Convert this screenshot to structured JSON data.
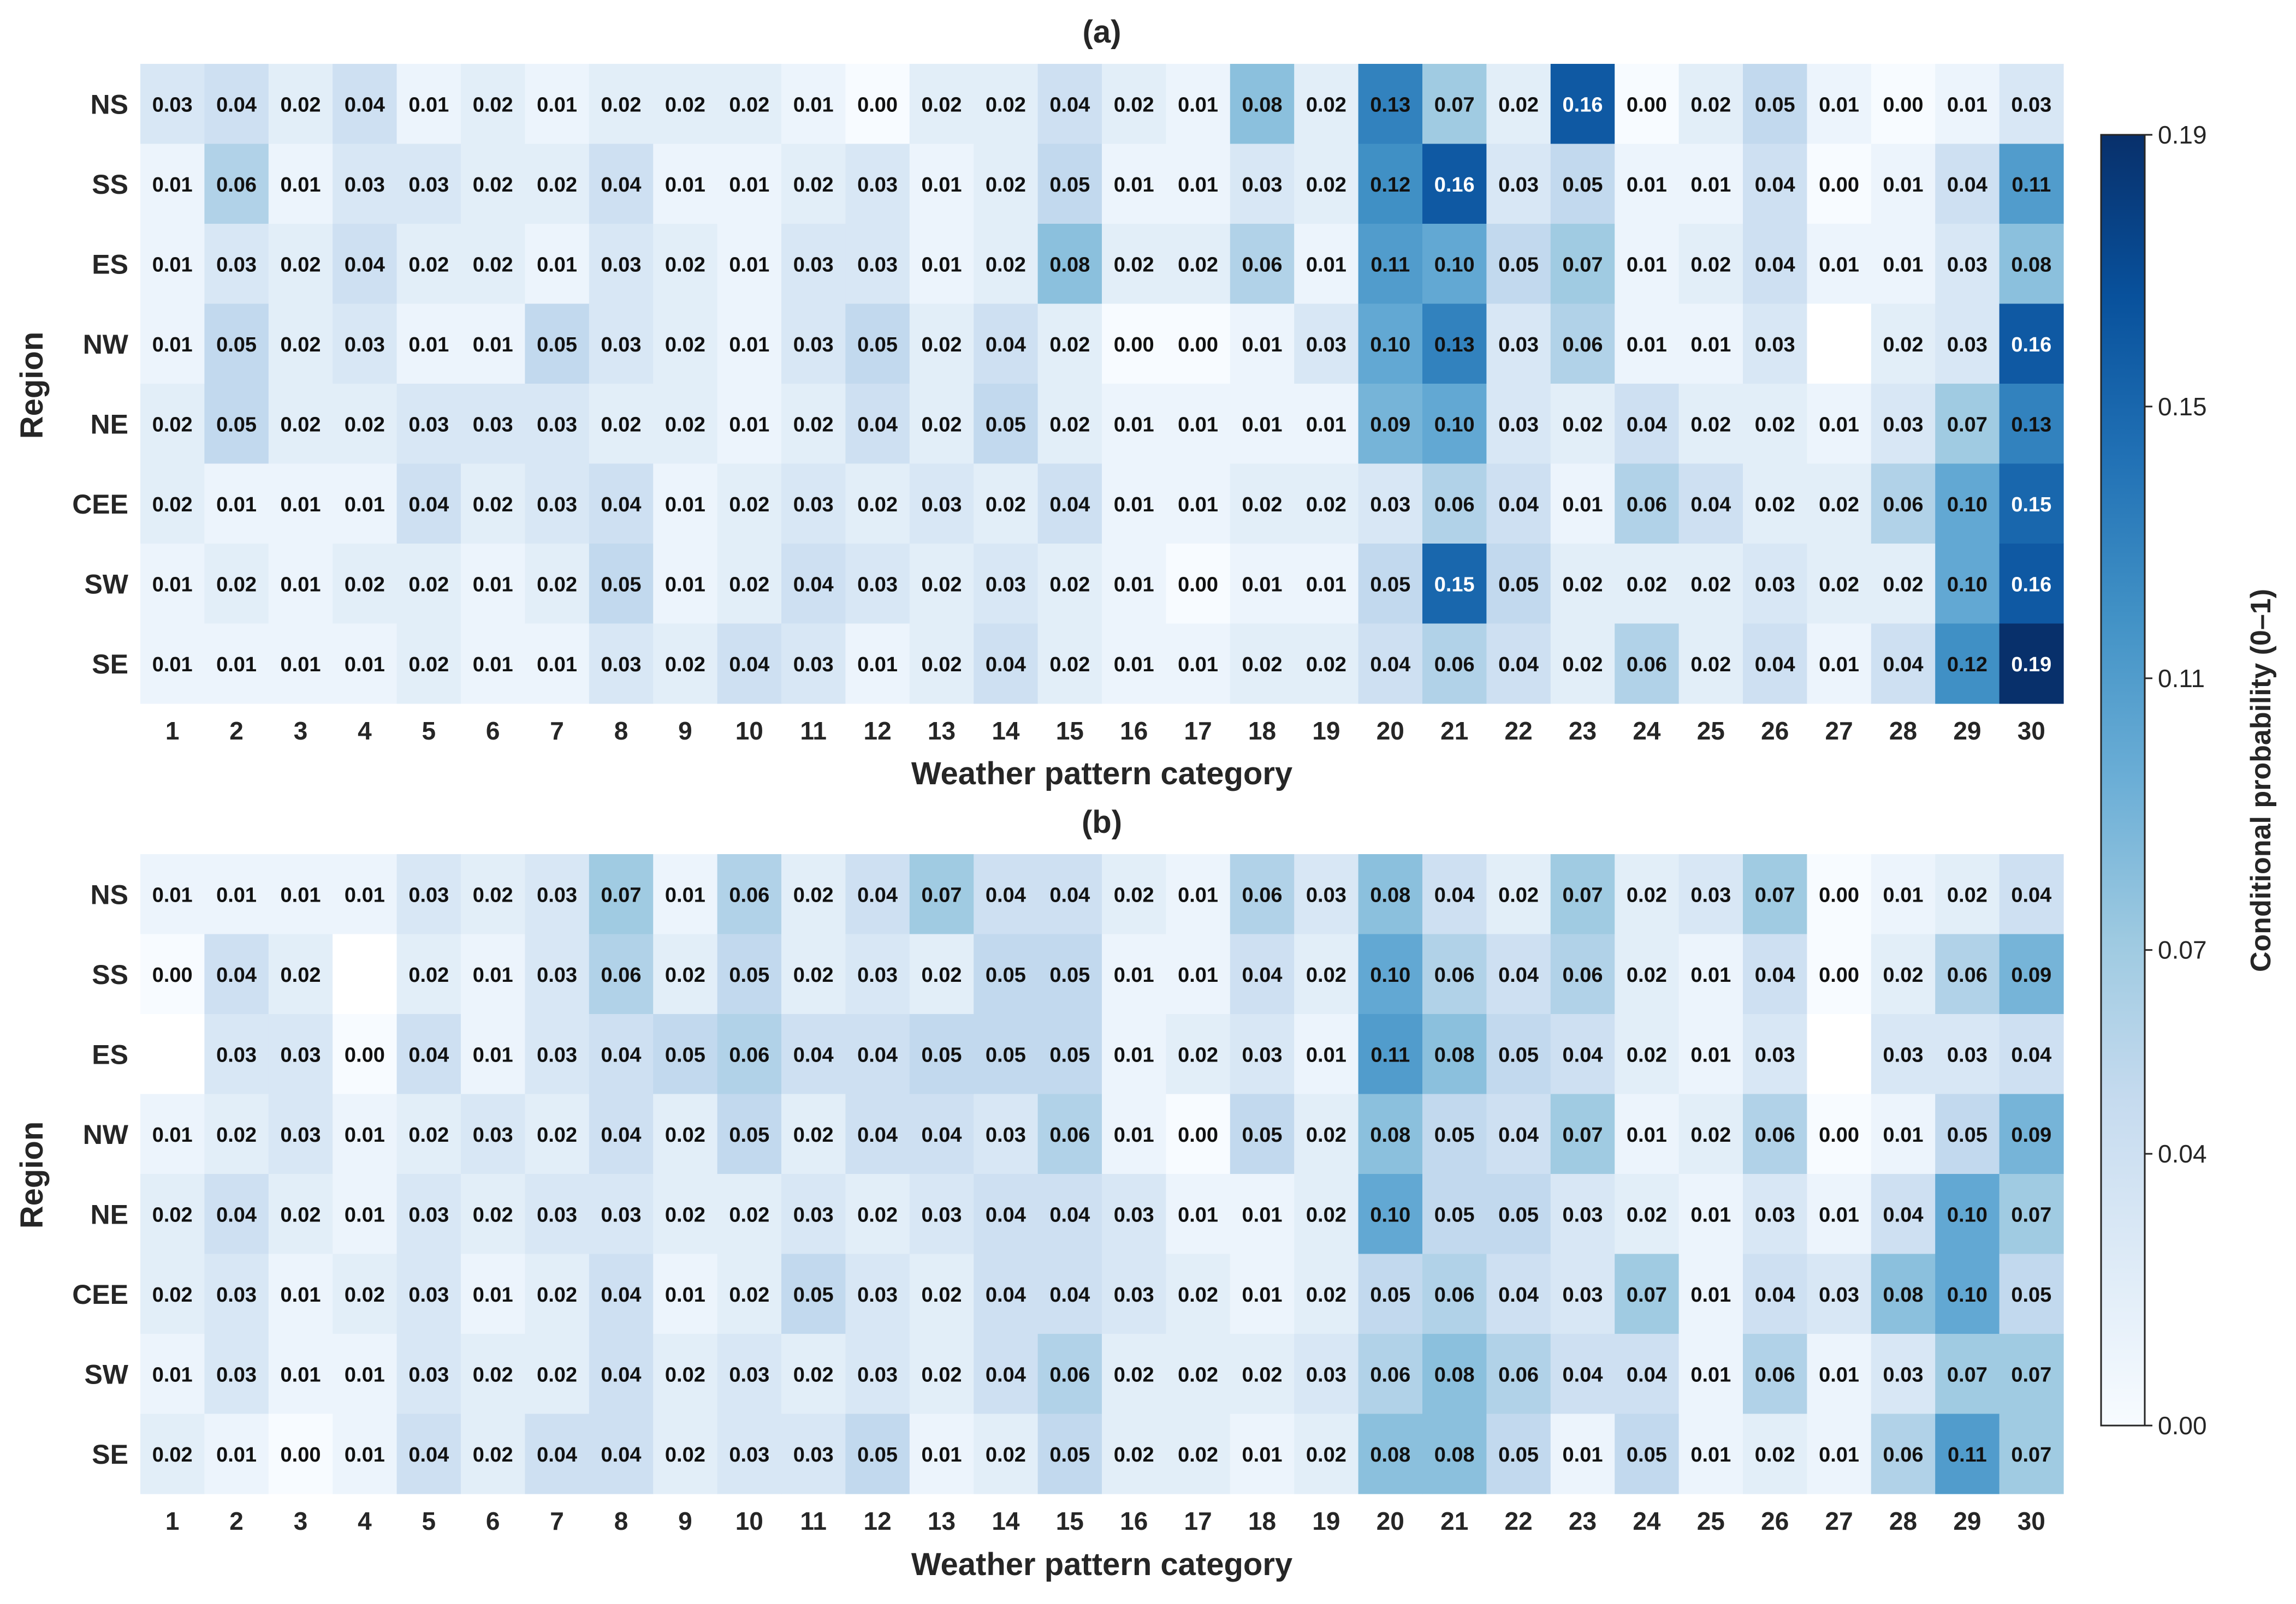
{
  "chart_data": {
    "type": "heatmap",
    "panels": [
      {
        "title": "(a)",
        "xlabel": "Weather pattern category",
        "ylabel": "Region",
        "x_categories": [
          "1",
          "2",
          "3",
          "4",
          "5",
          "6",
          "7",
          "8",
          "9",
          "10",
          "11",
          "12",
          "13",
          "14",
          "15",
          "16",
          "17",
          "18",
          "19",
          "20",
          "21",
          "22",
          "23",
          "24",
          "25",
          "26",
          "27",
          "28",
          "29",
          "30"
        ],
        "y_categories": [
          "NS",
          "SS",
          "ES",
          "NW",
          "NE",
          "CEE",
          "SW",
          "SE"
        ],
        "values": [
          [
            0.03,
            0.04,
            0.02,
            0.04,
            0.01,
            0.02,
            0.01,
            0.02,
            0.02,
            0.02,
            0.01,
            0.0,
            0.02,
            0.02,
            0.04,
            0.02,
            0.01,
            0.08,
            0.02,
            0.13,
            0.07,
            0.02,
            0.16,
            0.0,
            0.02,
            0.05,
            0.01,
            0.0,
            0.01,
            0.03
          ],
          [
            0.01,
            0.06,
            0.01,
            0.03,
            0.03,
            0.02,
            0.02,
            0.04,
            0.01,
            0.01,
            0.02,
            0.03,
            0.01,
            0.02,
            0.05,
            0.01,
            0.01,
            0.03,
            0.02,
            0.12,
            0.16,
            0.03,
            0.05,
            0.01,
            0.01,
            0.04,
            0.0,
            0.01,
            0.04,
            0.11
          ],
          [
            0.01,
            0.03,
            0.02,
            0.04,
            0.02,
            0.02,
            0.01,
            0.03,
            0.02,
            0.01,
            0.03,
            0.03,
            0.01,
            0.02,
            0.08,
            0.02,
            0.02,
            0.06,
            0.01,
            0.11,
            0.1,
            0.05,
            0.07,
            0.01,
            0.02,
            0.04,
            0.01,
            0.01,
            0.03,
            0.08
          ],
          [
            0.01,
            0.05,
            0.02,
            0.03,
            0.01,
            0.01,
            0.05,
            0.03,
            0.02,
            0.01,
            0.03,
            0.05,
            0.02,
            0.04,
            0.02,
            0.0,
            0.0,
            0.01,
            0.03,
            0.1,
            0.13,
            0.03,
            0.06,
            0.01,
            0.01,
            0.03,
            null,
            0.02,
            0.03,
            0.16
          ],
          [
            0.02,
            0.05,
            0.02,
            0.02,
            0.03,
            0.03,
            0.03,
            0.02,
            0.02,
            0.01,
            0.02,
            0.04,
            0.02,
            0.05,
            0.02,
            0.01,
            0.01,
            0.01,
            0.01,
            0.09,
            0.1,
            0.03,
            0.02,
            0.04,
            0.02,
            0.02,
            0.01,
            0.03,
            0.07,
            0.13
          ],
          [
            0.02,
            0.01,
            0.01,
            0.01,
            0.04,
            0.02,
            0.03,
            0.04,
            0.01,
            0.02,
            0.03,
            0.02,
            0.03,
            0.02,
            0.04,
            0.01,
            0.01,
            0.02,
            0.02,
            0.03,
            0.06,
            0.04,
            0.01,
            0.06,
            0.04,
            0.02,
            0.02,
            0.06,
            0.1,
            0.15
          ],
          [
            0.01,
            0.02,
            0.01,
            0.02,
            0.02,
            0.01,
            0.02,
            0.05,
            0.01,
            0.02,
            0.04,
            0.03,
            0.02,
            0.03,
            0.02,
            0.01,
            0.0,
            0.01,
            0.01,
            0.05,
            0.15,
            0.05,
            0.02,
            0.02,
            0.02,
            0.03,
            0.02,
            0.02,
            0.1,
            0.16
          ],
          [
            0.01,
            0.01,
            0.01,
            0.01,
            0.02,
            0.01,
            0.01,
            0.03,
            0.02,
            0.04,
            0.03,
            0.01,
            0.02,
            0.04,
            0.02,
            0.01,
            0.01,
            0.02,
            0.02,
            0.04,
            0.06,
            0.04,
            0.02,
            0.06,
            0.02,
            0.04,
            0.01,
            0.04,
            0.12,
            0.19
          ]
        ]
      },
      {
        "title": "(b)",
        "xlabel": "Weather pattern category",
        "ylabel": "Region",
        "x_categories": [
          "1",
          "2",
          "3",
          "4",
          "5",
          "6",
          "7",
          "8",
          "9",
          "10",
          "11",
          "12",
          "13",
          "14",
          "15",
          "16",
          "17",
          "18",
          "19",
          "20",
          "21",
          "22",
          "23",
          "24",
          "25",
          "26",
          "27",
          "28",
          "29",
          "30"
        ],
        "y_categories": [
          "NS",
          "SS",
          "ES",
          "NW",
          "NE",
          "CEE",
          "SW",
          "SE"
        ],
        "values": [
          [
            0.01,
            0.01,
            0.01,
            0.01,
            0.03,
            0.02,
            0.03,
            0.07,
            0.01,
            0.06,
            0.02,
            0.04,
            0.07,
            0.04,
            0.04,
            0.02,
            0.01,
            0.06,
            0.03,
            0.08,
            0.04,
            0.02,
            0.07,
            0.02,
            0.03,
            0.07,
            0.0,
            0.01,
            0.02,
            0.04
          ],
          [
            0.0,
            0.04,
            0.02,
            null,
            0.02,
            0.01,
            0.03,
            0.06,
            0.02,
            0.05,
            0.02,
            0.03,
            0.02,
            0.05,
            0.05,
            0.01,
            0.01,
            0.04,
            0.02,
            0.1,
            0.06,
            0.04,
            0.06,
            0.02,
            0.01,
            0.04,
            0.0,
            0.02,
            0.06,
            0.09
          ],
          [
            null,
            0.03,
            0.03,
            0.0,
            0.04,
            0.01,
            0.03,
            0.04,
            0.05,
            0.06,
            0.04,
            0.04,
            0.05,
            0.05,
            0.05,
            0.01,
            0.02,
            0.03,
            0.01,
            0.11,
            0.08,
            0.05,
            0.04,
            0.02,
            0.01,
            0.03,
            null,
            0.03,
            0.03,
            0.04
          ],
          [
            0.01,
            0.02,
            0.03,
            0.01,
            0.02,
            0.03,
            0.02,
            0.04,
            0.02,
            0.05,
            0.02,
            0.04,
            0.04,
            0.03,
            0.06,
            0.01,
            0.0,
            0.05,
            0.02,
            0.08,
            0.05,
            0.04,
            0.07,
            0.01,
            0.02,
            0.06,
            0.0,
            0.01,
            0.05,
            0.09
          ],
          [
            0.02,
            0.04,
            0.02,
            0.01,
            0.03,
            0.02,
            0.03,
            0.03,
            0.02,
            0.02,
            0.03,
            0.02,
            0.03,
            0.04,
            0.04,
            0.03,
            0.01,
            0.01,
            0.02,
            0.1,
            0.05,
            0.05,
            0.03,
            0.02,
            0.01,
            0.03,
            0.01,
            0.04,
            0.1,
            0.07
          ],
          [
            0.02,
            0.03,
            0.01,
            0.02,
            0.03,
            0.01,
            0.02,
            0.04,
            0.01,
            0.02,
            0.05,
            0.03,
            0.02,
            0.04,
            0.04,
            0.03,
            0.02,
            0.01,
            0.02,
            0.05,
            0.06,
            0.04,
            0.03,
            0.07,
            0.01,
            0.04,
            0.03,
            0.08,
            0.1,
            0.05
          ],
          [
            0.01,
            0.03,
            0.01,
            0.01,
            0.03,
            0.02,
            0.02,
            0.04,
            0.02,
            0.03,
            0.02,
            0.03,
            0.02,
            0.04,
            0.06,
            0.02,
            0.02,
            0.02,
            0.03,
            0.06,
            0.08,
            0.06,
            0.04,
            0.04,
            0.01,
            0.06,
            0.01,
            0.03,
            0.07,
            0.07
          ],
          [
            0.02,
            0.01,
            0.0,
            0.01,
            0.04,
            0.02,
            0.04,
            0.04,
            0.02,
            0.03,
            0.03,
            0.05,
            0.01,
            0.02,
            0.05,
            0.02,
            0.02,
            0.01,
            0.02,
            0.08,
            0.08,
            0.05,
            0.01,
            0.05,
            0.01,
            0.02,
            0.01,
            0.06,
            0.11,
            0.07
          ]
        ]
      }
    ],
    "colorbar": {
      "label": "Conditional probability (0–1)",
      "ticks": [
        "0.00",
        "0.04",
        "0.07",
        "0.11",
        "0.15",
        "0.19"
      ],
      "range": [
        0.0,
        0.19
      ],
      "colormap": "Blues"
    },
    "colors": [
      "#f7fbff",
      "#deebf7",
      "#c6dbef",
      "#9ecae1",
      "#6baed6",
      "#4292c6",
      "#2171b5",
      "#08519c",
      "#08306b"
    ]
  }
}
